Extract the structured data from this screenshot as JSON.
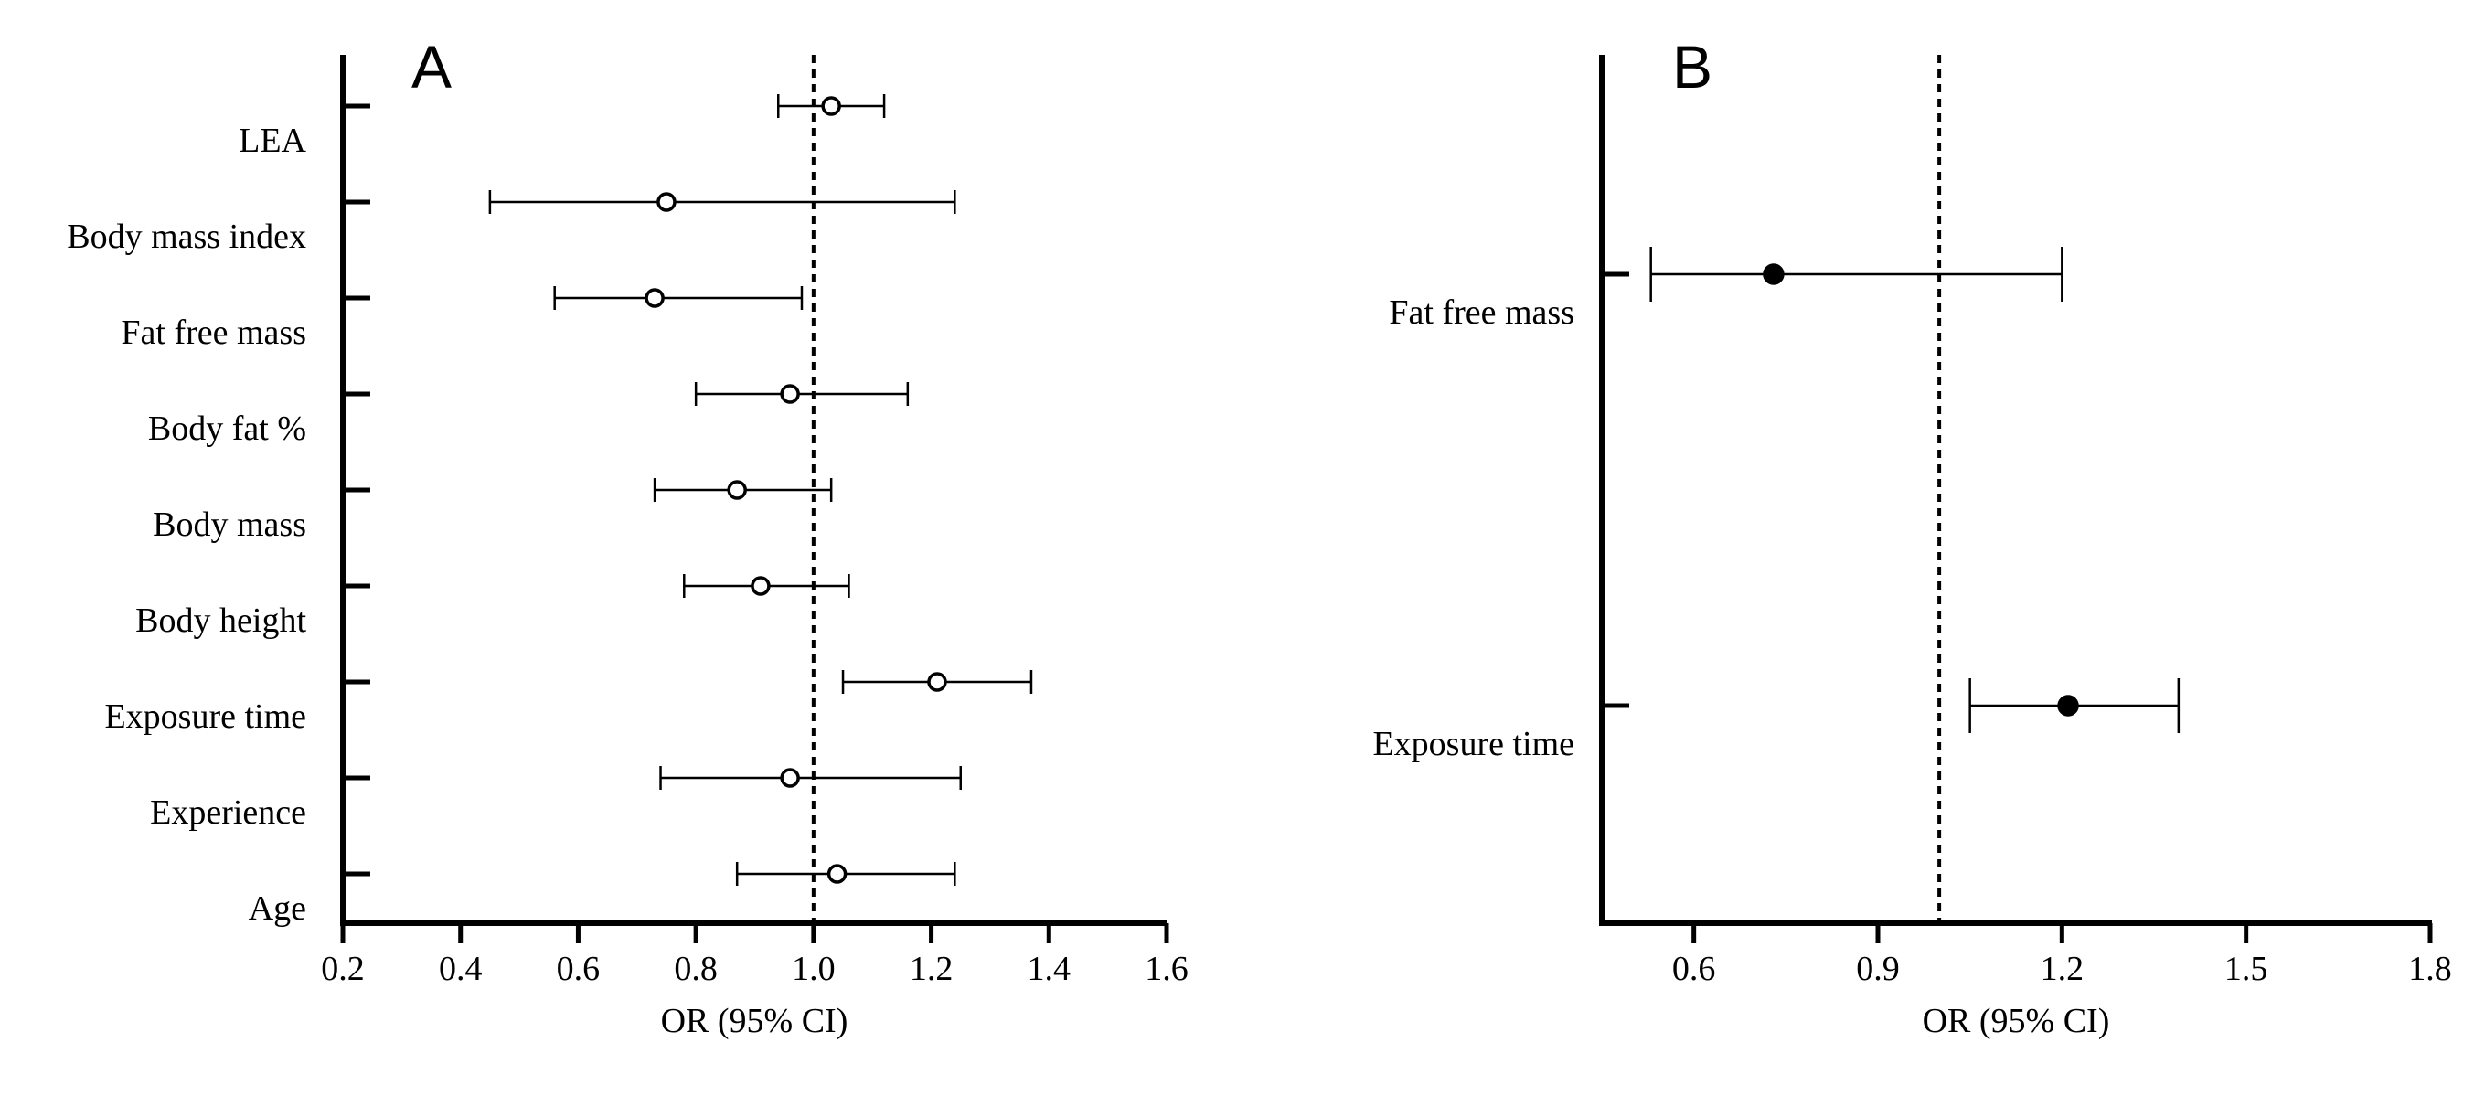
{
  "chart_data": [
    {
      "panel": "A",
      "type": "forest",
      "xlabel": "OR (95% CI)",
      "xlim": [
        0.2,
        1.6
      ],
      "xticks": [
        0.2,
        0.4,
        0.6,
        0.8,
        1.0,
        1.2,
        1.4,
        1.6
      ],
      "xtick_labels": [
        "0.2",
        "0.4",
        "0.6",
        "0.8",
        "1.0",
        "1.2",
        "1.4",
        "1.6"
      ],
      "reference_line": 1.0,
      "marker": "open-circle",
      "rows": [
        {
          "label": "LEA",
          "or": 1.03,
          "lower": 0.94,
          "upper": 1.12
        },
        {
          "label": "Body mass index",
          "or": 0.75,
          "lower": 0.45,
          "upper": 1.24
        },
        {
          "label": "Fat free mass",
          "or": 0.73,
          "lower": 0.56,
          "upper": 0.98
        },
        {
          "label": "Body fat %",
          "or": 0.96,
          "lower": 0.8,
          "upper": 1.16
        },
        {
          "label": "Body mass",
          "or": 0.87,
          "lower": 0.73,
          "upper": 1.03
        },
        {
          "label": "Body height",
          "or": 0.91,
          "lower": 0.78,
          "upper": 1.06
        },
        {
          "label": "Exposure time",
          "or": 1.21,
          "lower": 1.05,
          "upper": 1.37
        },
        {
          "label": "Experience",
          "or": 0.96,
          "lower": 0.74,
          "upper": 1.25
        },
        {
          "label": "Age",
          "or": 1.04,
          "lower": 0.87,
          "upper": 1.24
        }
      ]
    },
    {
      "panel": "B",
      "type": "forest",
      "xlabel": "OR (95% CI)",
      "xlim": [
        0.45,
        1.8
      ],
      "xticks": [
        0.6,
        0.9,
        1.2,
        1.5,
        1.8
      ],
      "xtick_labels": [
        "0.6",
        "0.9",
        "1.2",
        "1.5",
        "1.8"
      ],
      "reference_line": 1.0,
      "marker": "filled-circle",
      "rows": [
        {
          "label": "Fat free mass",
          "or": 0.73,
          "lower": 0.53,
          "upper": 1.2
        },
        {
          "label": "Exposure time",
          "or": 1.21,
          "lower": 1.05,
          "upper": 1.39
        }
      ]
    }
  ]
}
